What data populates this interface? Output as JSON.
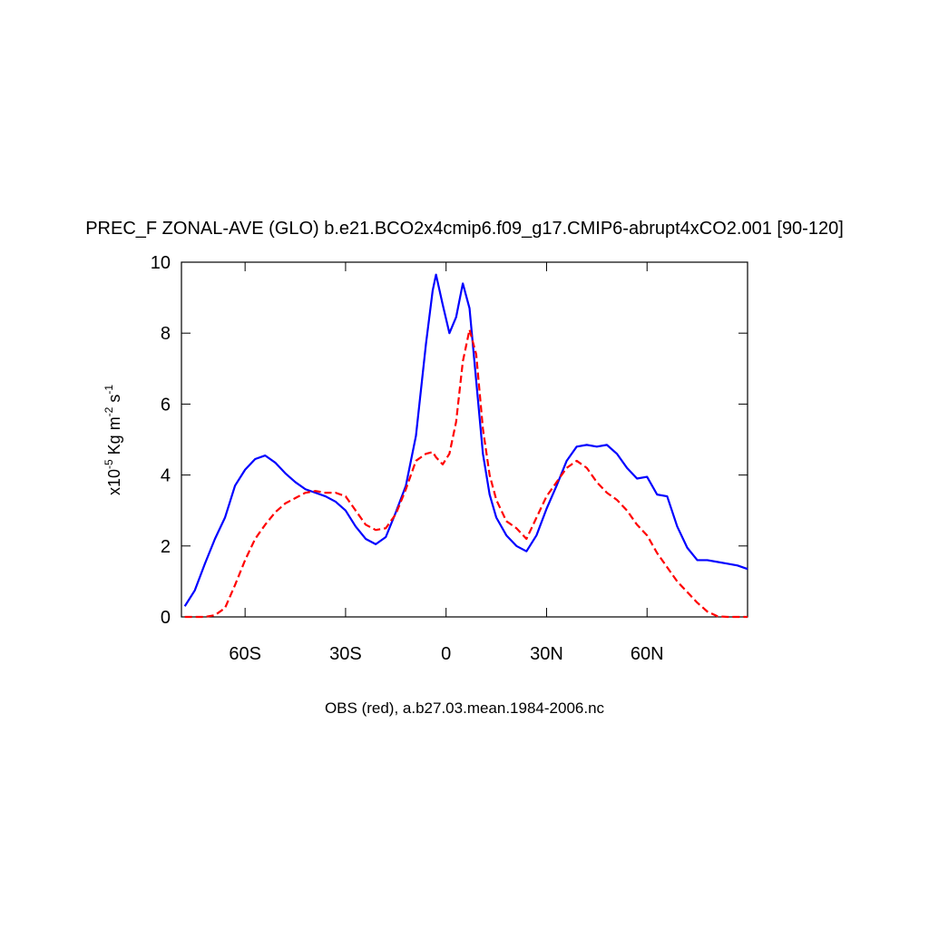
{
  "chart_data": {
    "type": "line",
    "title": "PREC_F ZONAL-AVE (GLO) b.e21.BCO2x4cmip6.f09_g17.CMIP6-abrupt4xCO2.001 [90-120]",
    "caption": "OBS (red), a.b27.03.mean.1984-2006.nc",
    "ylabel": [
      {
        "text": "x10"
      },
      {
        "text": "-5",
        "sup": true
      },
      {
        "text": " Kg m"
      },
      {
        "text": "-2",
        "sup": true
      },
      {
        "text": " s"
      },
      {
        "text": "-1",
        "sup": true
      }
    ],
    "x": [
      -78,
      -75,
      -72,
      -69,
      -66,
      -63,
      -60,
      -57,
      -54,
      -51,
      -48,
      -45,
      -42,
      -39,
      -36,
      -33,
      -30,
      -27,
      -24,
      -21,
      -18,
      -15,
      -12,
      -9,
      -6,
      -4,
      -3,
      -1,
      1,
      3,
      5,
      7,
      9,
      11,
      13,
      15,
      18,
      21,
      24,
      27,
      30,
      33,
      36,
      39,
      42,
      45,
      48,
      51,
      54,
      57,
      60,
      63,
      66,
      69,
      72,
      75,
      78,
      81,
      84,
      87,
      90
    ],
    "series": [
      {
        "color": "#0000ff",
        "dashed": false,
        "values": [
          0.3,
          0.75,
          1.5,
          2.2,
          2.8,
          3.7,
          4.15,
          4.45,
          4.55,
          4.35,
          4.05,
          3.8,
          3.6,
          3.5,
          3.4,
          3.25,
          3.0,
          2.55,
          2.2,
          2.05,
          2.25,
          2.95,
          3.7,
          5.1,
          7.7,
          9.2,
          9.65,
          8.8,
          8.0,
          8.45,
          9.4,
          8.7,
          6.65,
          4.6,
          3.45,
          2.8,
          2.3,
          2.0,
          1.85,
          2.3,
          3.05,
          3.7,
          4.4,
          4.8,
          4.85,
          4.8,
          4.85,
          4.6,
          4.2,
          3.9,
          3.95,
          3.45,
          3.4,
          2.55,
          1.95,
          1.6,
          1.6,
          1.55,
          1.5,
          1.45,
          1.35
        ]
      },
      {
        "color": "#ff0000",
        "dashed": true,
        "values": [
          0,
          0,
          0,
          0.05,
          0.25,
          0.9,
          1.6,
          2.2,
          2.6,
          2.95,
          3.2,
          3.35,
          3.5,
          3.55,
          3.5,
          3.5,
          3.4,
          3.0,
          2.6,
          2.45,
          2.5,
          2.9,
          3.6,
          4.4,
          4.6,
          4.65,
          4.5,
          4.3,
          4.6,
          5.5,
          7.2,
          8.1,
          7.4,
          5.3,
          4.0,
          3.3,
          2.7,
          2.5,
          2.2,
          2.8,
          3.4,
          3.8,
          4.2,
          4.4,
          4.2,
          3.8,
          3.5,
          3.3,
          3.0,
          2.6,
          2.3,
          1.8,
          1.4,
          1.0,
          0.7,
          0.4,
          0.15,
          0.02,
          0,
          0,
          0
        ]
      }
    ],
    "xlim": [
      -79,
      90
    ],
    "xticks": [
      {
        "value": -60,
        "label": "60S"
      },
      {
        "value": -30,
        "label": "30S"
      },
      0,
      {
        "value": 30,
        "label": "30N"
      },
      {
        "value": 60,
        "label": "60N"
      }
    ],
    "ylim": [
      0,
      10
    ],
    "yticks": [
      0,
      2,
      4,
      6,
      8,
      10
    ]
  }
}
